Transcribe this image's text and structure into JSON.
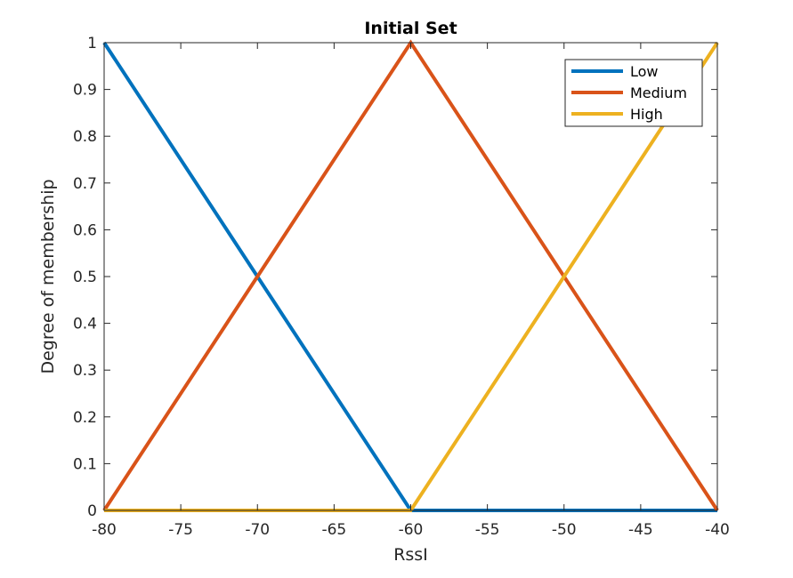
{
  "chart_data": {
    "type": "line",
    "title": "Initial Set",
    "xlabel": "RssI",
    "ylabel": "Degree of membership",
    "xlim": [
      -80,
      -40
    ],
    "ylim": [
      0,
      1
    ],
    "xticks": [
      -80,
      -75,
      -70,
      -65,
      -60,
      -55,
      -50,
      -45,
      -40
    ],
    "yticks": [
      0,
      0.1,
      0.2,
      0.3,
      0.4,
      0.5,
      0.6,
      0.7,
      0.8,
      0.9,
      1
    ],
    "xtick_labels": [
      "-80",
      "-75",
      "-70",
      "-65",
      "-60",
      "-55",
      "-50",
      "-45",
      "-40"
    ],
    "ytick_labels": [
      "0",
      "0.1",
      "0.2",
      "0.3",
      "0.4",
      "0.5",
      "0.6",
      "0.7",
      "0.8",
      "0.9",
      "1"
    ],
    "grid": false,
    "legend_position": "top-right",
    "series": [
      {
        "name": "Low",
        "color": "#0072BD",
        "x": [
          -80,
          -60,
          -40
        ],
        "y": [
          1,
          0,
          0
        ]
      },
      {
        "name": "Medium",
        "color": "#D95319",
        "x": [
          -80,
          -60,
          -40
        ],
        "y": [
          0,
          1,
          0
        ]
      },
      {
        "name": "High",
        "color": "#EDB120",
        "x": [
          -80,
          -60,
          -40
        ],
        "y": [
          0,
          0,
          1
        ]
      }
    ]
  }
}
